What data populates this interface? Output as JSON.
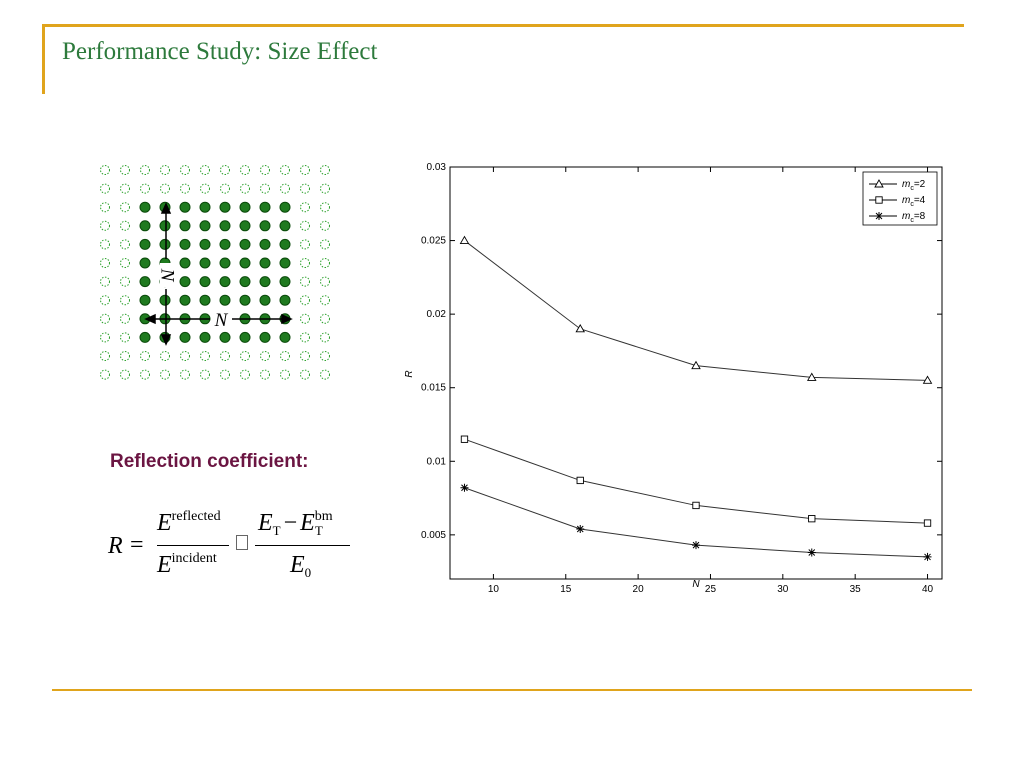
{
  "slide": {
    "title": "Performance Study: Size Effect",
    "reflection_label": "Reflection coefficient:"
  },
  "lattice": {
    "size_label": "N"
  },
  "formula": {
    "lhs": "R",
    "num1": "E",
    "num1_sup": "reflected",
    "den1": "E",
    "den1_sup": "incident",
    "num2a": "E",
    "num2a_sub": "T",
    "minus": "−",
    "num2b": "E",
    "num2b_sub": "T",
    "num2b_sup": "bm",
    "den2": "E",
    "den2_sub": "0"
  },
  "chart_data": {
    "type": "line",
    "xlabel": "N",
    "ylabel": "R",
    "xlim": [
      7,
      41
    ],
    "ylim": [
      0.002,
      0.03
    ],
    "xticks": [
      10,
      15,
      20,
      25,
      30,
      35,
      40
    ],
    "yticks": [
      0.005,
      0.01,
      0.015,
      0.02,
      0.025,
      0.03
    ],
    "ytick_labels": [
      "0.005",
      "0.01",
      "0.015",
      "0.02",
      "0.025",
      "0.03"
    ],
    "x": [
      8,
      16,
      24,
      32,
      40
    ],
    "series": [
      {
        "name": "m_c=2",
        "legend_base": "m",
        "legend_sub": "c",
        "legend_val": "=2",
        "marker": "triangle",
        "values": [
          0.025,
          0.019,
          0.0165,
          0.0157,
          0.0155
        ]
      },
      {
        "name": "m_c=4",
        "legend_base": "m",
        "legend_sub": "c",
        "legend_val": "=4",
        "marker": "square",
        "values": [
          0.0115,
          0.0087,
          0.007,
          0.0061,
          0.0058
        ]
      },
      {
        "name": "m_c=8",
        "legend_base": "m",
        "legend_sub": "c",
        "legend_val": "=8",
        "marker": "star",
        "values": [
          0.0082,
          0.0054,
          0.0043,
          0.0038,
          0.0035
        ]
      }
    ],
    "legend_position": "top-right",
    "grid": false,
    "line_color": "#333333"
  },
  "colors": {
    "accent_rule": "#e0a41c",
    "title": "#2d7a3c",
    "dot_fill": "#1f7a1f",
    "label": "#6b1542"
  }
}
